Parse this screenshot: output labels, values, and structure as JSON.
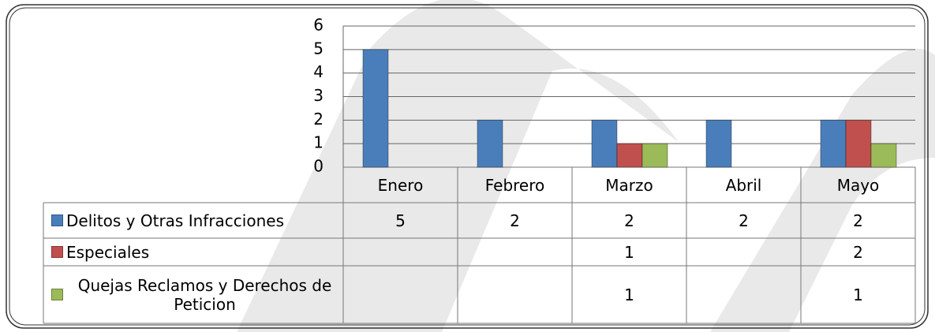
{
  "chart_data": {
    "type": "bar",
    "categories": [
      "Enero",
      "Febrero",
      "Marzo",
      "Abril",
      "Mayo"
    ],
    "series": [
      {
        "name": "Delitos y Otras Infracciones",
        "color": "#4a7ebb",
        "values": [
          5,
          2,
          2,
          2,
          2
        ]
      },
      {
        "name": "Especiales",
        "color": "#c0504d",
        "values": [
          null,
          null,
          1,
          null,
          2
        ]
      },
      {
        "name": "Quejas Reclamos y Derechos de Peticion",
        "color": "#9bbb59",
        "values": [
          null,
          null,
          1,
          null,
          1
        ]
      }
    ],
    "ylim": [
      0,
      6
    ],
    "yticks": [
      0,
      1,
      2,
      3,
      4,
      5,
      6
    ],
    "grid": true
  }
}
